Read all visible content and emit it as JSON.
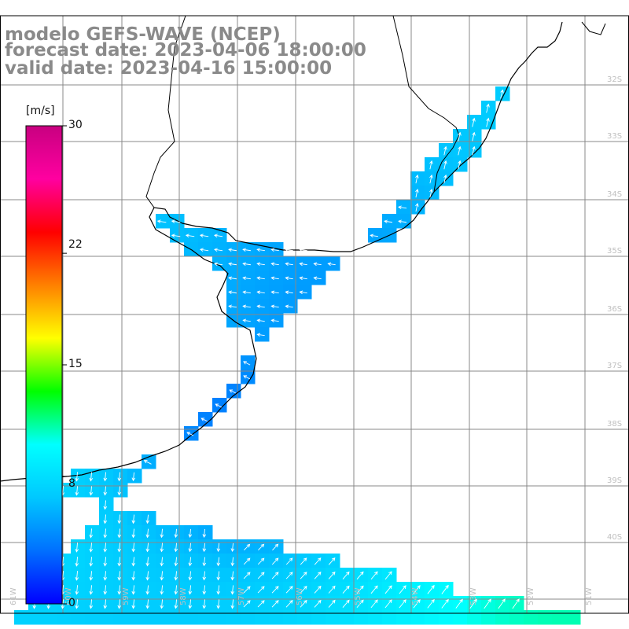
{
  "header": {
    "model": "modelo GEFS-WAVE (NCEP)",
    "forecast": "forecast date: 2023-04-06 18:00:00",
    "valid": "valid date: 2023-04-16 15:00:00"
  },
  "colorbar": {
    "unit": "[m/s]",
    "ticks": [
      {
        "value": 30,
        "label": "30"
      },
      {
        "value": 22,
        "label": "22"
      },
      {
        "value": 15,
        "label": "15"
      },
      {
        "value": 8,
        "label": "8"
      },
      {
        "value": 0,
        "label": "0"
      }
    ],
    "colors": [
      "#0000ff",
      "#0070ff",
      "#00c8ff",
      "#00ffff",
      "#00ff00",
      "#ffff00",
      "#ff8000",
      "#ff0000",
      "#ff00a0",
      "#c80080"
    ]
  },
  "map": {
    "land_color": "#ffffff",
    "grid_color": "#888888",
    "coast_color": "#000000",
    "arrow_color": "#ffffff",
    "right_labels": [
      "32S",
      "33S",
      "34S",
      "35S",
      "36S",
      "37S",
      "38S",
      "39S",
      "40S"
    ],
    "bottom_labels": [
      "61W",
      "60W",
      "59W",
      "58W",
      "57W",
      "56W",
      "55W",
      "54W",
      "53W",
      "52W",
      "51W"
    ]
  }
}
